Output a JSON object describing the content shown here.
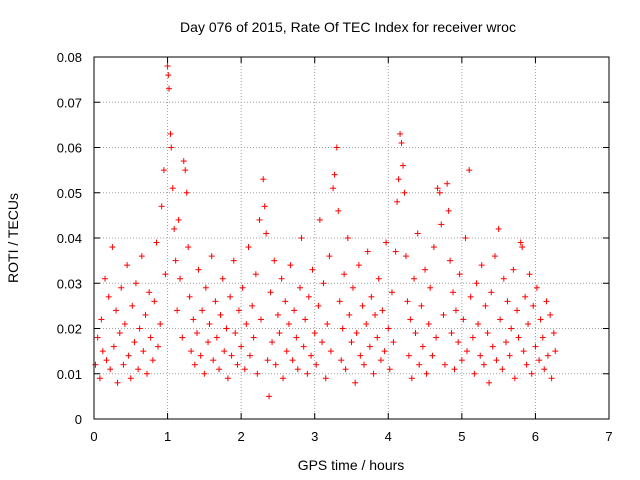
{
  "chart_data": {
    "type": "scatter",
    "title": "Day 076 of 2015, Rate Of TEC Index for receiver wroc",
    "xlabel": "GPS time / hours",
    "ylabel": "ROTI / TECUs",
    "xlim": [
      0,
      7
    ],
    "ylim": [
      0,
      0.08
    ],
    "xticks": [
      0,
      1,
      2,
      3,
      4,
      5,
      6,
      7
    ],
    "xtick_labels": [
      "0",
      "1",
      "2",
      "3",
      "4",
      "5",
      "6",
      "7"
    ],
    "yticks": [
      0,
      0.01,
      0.02,
      0.03,
      0.04,
      0.05,
      0.06,
      0.07,
      0.08
    ],
    "ytick_labels": [
      "0",
      "0.01",
      "0.02",
      "0.03",
      "0.04",
      "0.05",
      "0.06",
      "0.07",
      "0.08"
    ],
    "grid": true,
    "marker": "+",
    "color": "#ff0000",
    "series": [
      {
        "name": "ROTI",
        "points": [
          [
            0.02,
            0.012
          ],
          [
            0.05,
            0.018
          ],
          [
            0.08,
            0.009
          ],
          [
            0.1,
            0.022
          ],
          [
            0.12,
            0.015
          ],
          [
            0.15,
            0.031
          ],
          [
            0.17,
            0.013
          ],
          [
            0.2,
            0.027
          ],
          [
            0.22,
            0.011
          ],
          [
            0.25,
            0.038
          ],
          [
            0.27,
            0.016
          ],
          [
            0.3,
            0.024
          ],
          [
            0.32,
            0.008
          ],
          [
            0.35,
            0.019
          ],
          [
            0.37,
            0.029
          ],
          [
            0.4,
            0.012
          ],
          [
            0.42,
            0.021
          ],
          [
            0.45,
            0.034
          ],
          [
            0.47,
            0.014
          ],
          [
            0.5,
            0.009
          ],
          [
            0.52,
            0.025
          ],
          [
            0.55,
            0.017
          ],
          [
            0.57,
            0.03
          ],
          [
            0.6,
            0.011
          ],
          [
            0.62,
            0.02
          ],
          [
            0.65,
            0.036
          ],
          [
            0.67,
            0.015
          ],
          [
            0.7,
            0.023
          ],
          [
            0.72,
            0.01
          ],
          [
            0.75,
            0.028
          ],
          [
            0.77,
            0.018
          ],
          [
            0.8,
            0.013
          ],
          [
            0.82,
            0.026
          ],
          [
            0.85,
            0.039
          ],
          [
            0.87,
            0.016
          ],
          [
            0.9,
            0.021
          ],
          [
            0.92,
            0.047
          ],
          [
            0.95,
            0.055
          ],
          [
            0.97,
            0.032
          ],
          [
            1.0,
            0.078
          ],
          [
            1.01,
            0.076
          ],
          [
            1.02,
            0.073
          ],
          [
            1.04,
            0.063
          ],
          [
            1.05,
            0.06
          ],
          [
            1.07,
            0.051
          ],
          [
            1.09,
            0.042
          ],
          [
            1.11,
            0.035
          ],
          [
            1.13,
            0.024
          ],
          [
            1.15,
            0.044
          ],
          [
            1.17,
            0.031
          ],
          [
            1.2,
            0.018
          ],
          [
            1.22,
            0.057
          ],
          [
            1.24,
            0.055
          ],
          [
            1.26,
            0.05
          ],
          [
            1.28,
            0.038
          ],
          [
            1.3,
            0.027
          ],
          [
            1.32,
            0.015
          ],
          [
            1.35,
            0.022
          ],
          [
            1.37,
            0.012
          ],
          [
            1.4,
            0.019
          ],
          [
            1.42,
            0.033
          ],
          [
            1.45,
            0.014
          ],
          [
            1.47,
            0.024
          ],
          [
            1.5,
            0.01
          ],
          [
            1.52,
            0.029
          ],
          [
            1.55,
            0.017
          ],
          [
            1.57,
            0.021
          ],
          [
            1.6,
            0.036
          ],
          [
            1.62,
            0.013
          ],
          [
            1.65,
            0.026
          ],
          [
            1.67,
            0.018
          ],
          [
            1.7,
            0.011
          ],
          [
            1.72,
            0.023
          ],
          [
            1.75,
            0.031
          ],
          [
            1.77,
            0.015
          ],
          [
            1.8,
            0.02
          ],
          [
            1.82,
            0.009
          ],
          [
            1.85,
            0.027
          ],
          [
            1.87,
            0.014
          ],
          [
            1.9,
            0.035
          ],
          [
            1.92,
            0.019
          ],
          [
            1.95,
            0.012
          ],
          [
            1.97,
            0.024
          ],
          [
            2.0,
            0.016
          ],
          [
            2.02,
            0.029
          ],
          [
            2.05,
            0.011
          ],
          [
            2.07,
            0.021
          ],
          [
            2.1,
            0.038
          ],
          [
            2.12,
            0.014
          ],
          [
            2.15,
            0.025
          ],
          [
            2.17,
            0.018
          ],
          [
            2.2,
            0.032
          ],
          [
            2.22,
            0.01
          ],
          [
            2.25,
            0.044
          ],
          [
            2.27,
            0.022
          ],
          [
            2.3,
            0.053
          ],
          [
            2.32,
            0.047
          ],
          [
            2.34,
            0.041
          ],
          [
            2.36,
            0.013
          ],
          [
            2.38,
            0.005
          ],
          [
            2.4,
            0.028
          ],
          [
            2.42,
            0.017
          ],
          [
            2.45,
            0.035
          ],
          [
            2.47,
            0.012
          ],
          [
            2.5,
            0.023
          ],
          [
            2.52,
            0.019
          ],
          [
            2.55,
            0.031
          ],
          [
            2.57,
            0.009
          ],
          [
            2.6,
            0.026
          ],
          [
            2.62,
            0.015
          ],
          [
            2.65,
            0.021
          ],
          [
            2.67,
            0.034
          ],
          [
            2.7,
            0.013
          ],
          [
            2.72,
            0.024
          ],
          [
            2.75,
            0.018
          ],
          [
            2.77,
            0.011
          ],
          [
            2.8,
            0.029
          ],
          [
            2.82,
            0.04
          ],
          [
            2.85,
            0.016
          ],
          [
            2.87,
            0.022
          ],
          [
            2.9,
            0.01
          ],
          [
            2.92,
            0.027
          ],
          [
            2.95,
            0.014
          ],
          [
            2.97,
            0.033
          ],
          [
            3.0,
            0.019
          ],
          [
            3.02,
            0.012
          ],
          [
            3.05,
            0.025
          ],
          [
            3.07,
            0.044
          ],
          [
            3.1,
            0.017
          ],
          [
            3.12,
            0.03
          ],
          [
            3.15,
            0.009
          ],
          [
            3.17,
            0.021
          ],
          [
            3.2,
            0.036
          ],
          [
            3.22,
            0.015
          ],
          [
            3.25,
            0.051
          ],
          [
            3.27,
            0.054
          ],
          [
            3.3,
            0.06
          ],
          [
            3.32,
            0.046
          ],
          [
            3.34,
            0.026
          ],
          [
            3.36,
            0.013
          ],
          [
            3.38,
            0.02
          ],
          [
            3.4,
            0.032
          ],
          [
            3.42,
            0.011
          ],
          [
            3.45,
            0.04
          ],
          [
            3.47,
            0.023
          ],
          [
            3.5,
            0.017
          ],
          [
            3.52,
            0.029
          ],
          [
            3.55,
            0.008
          ],
          [
            3.57,
            0.019
          ],
          [
            3.6,
            0.034
          ],
          [
            3.62,
            0.014
          ],
          [
            3.65,
            0.025
          ],
          [
            3.67,
            0.012
          ],
          [
            3.7,
            0.021
          ],
          [
            3.72,
            0.037
          ],
          [
            3.75,
            0.016
          ],
          [
            3.77,
            0.027
          ],
          [
            3.8,
            0.01
          ],
          [
            3.82,
            0.023
          ],
          [
            3.85,
            0.018
          ],
          [
            3.87,
            0.031
          ],
          [
            3.9,
            0.013
          ],
          [
            3.92,
            0.024
          ],
          [
            3.95,
            0.015
          ],
          [
            3.97,
            0.039
          ],
          [
            4.0,
            0.02
          ],
          [
            4.02,
            0.011
          ],
          [
            4.05,
            0.028
          ],
          [
            4.07,
            0.017
          ],
          [
            4.1,
            0.037
          ],
          [
            4.12,
            0.048
          ],
          [
            4.14,
            0.053
          ],
          [
            4.16,
            0.063
          ],
          [
            4.18,
            0.061
          ],
          [
            4.2,
            0.056
          ],
          [
            4.22,
            0.05
          ],
          [
            4.24,
            0.036
          ],
          [
            4.26,
            0.026
          ],
          [
            4.28,
            0.014
          ],
          [
            4.3,
            0.022
          ],
          [
            4.32,
            0.009
          ],
          [
            4.35,
            0.031
          ],
          [
            4.37,
            0.019
          ],
          [
            4.4,
            0.041
          ],
          [
            4.42,
            0.012
          ],
          [
            4.45,
            0.025
          ],
          [
            4.47,
            0.016
          ],
          [
            4.5,
            0.033
          ],
          [
            4.52,
            0.01
          ],
          [
            4.55,
            0.021
          ],
          [
            4.57,
            0.029
          ],
          [
            4.6,
            0.014
          ],
          [
            4.62,
            0.038
          ],
          [
            4.65,
            0.018
          ],
          [
            4.67,
            0.051
          ],
          [
            4.7,
            0.05
          ],
          [
            4.72,
            0.043
          ],
          [
            4.75,
            0.023
          ],
          [
            4.77,
            0.012
          ],
          [
            4.8,
            0.052
          ],
          [
            4.82,
            0.046
          ],
          [
            4.84,
            0.035
          ],
          [
            4.86,
            0.019
          ],
          [
            4.88,
            0.028
          ],
          [
            4.9,
            0.011
          ],
          [
            4.92,
            0.024
          ],
          [
            4.95,
            0.017
          ],
          [
            4.97,
            0.032
          ],
          [
            5.0,
            0.013
          ],
          [
            5.02,
            0.022
          ],
          [
            5.05,
            0.04
          ],
          [
            5.07,
            0.015
          ],
          [
            5.1,
            0.055
          ],
          [
            5.12,
            0.027
          ],
          [
            5.15,
            0.018
          ],
          [
            5.17,
            0.01
          ],
          [
            5.2,
            0.03
          ],
          [
            5.22,
            0.021
          ],
          [
            5.25,
            0.014
          ],
          [
            5.27,
            0.034
          ],
          [
            5.3,
            0.012
          ],
          [
            5.32,
            0.025
          ],
          [
            5.35,
            0.019
          ],
          [
            5.37,
            0.008
          ],
          [
            5.4,
            0.028
          ],
          [
            5.42,
            0.016
          ],
          [
            5.45,
            0.036
          ],
          [
            5.47,
            0.013
          ],
          [
            5.5,
            0.042
          ],
          [
            5.52,
            0.022
          ],
          [
            5.55,
            0.011
          ],
          [
            5.57,
            0.031
          ],
          [
            5.6,
            0.017
          ],
          [
            5.62,
            0.026
          ],
          [
            5.65,
            0.014
          ],
          [
            5.67,
            0.02
          ],
          [
            5.7,
            0.033
          ],
          [
            5.72,
            0.009
          ],
          [
            5.75,
            0.024
          ],
          [
            5.77,
            0.018
          ],
          [
            5.8,
            0.039
          ],
          [
            5.82,
            0.038
          ],
          [
            5.84,
            0.015
          ],
          [
            5.86,
            0.027
          ],
          [
            5.88,
            0.012
          ],
          [
            5.9,
            0.021
          ],
          [
            5.92,
            0.032
          ],
          [
            5.95,
            0.01
          ],
          [
            5.97,
            0.025
          ],
          [
            6.0,
            0.016
          ],
          [
            6.02,
            0.029
          ],
          [
            6.05,
            0.013
          ],
          [
            6.07,
            0.022
          ],
          [
            6.1,
            0.018
          ],
          [
            6.12,
            0.011
          ],
          [
            6.15,
            0.026
          ],
          [
            6.17,
            0.014
          ],
          [
            6.2,
            0.023
          ],
          [
            6.22,
            0.009
          ],
          [
            6.25,
            0.019
          ],
          [
            6.27,
            0.015
          ]
        ]
      }
    ]
  }
}
